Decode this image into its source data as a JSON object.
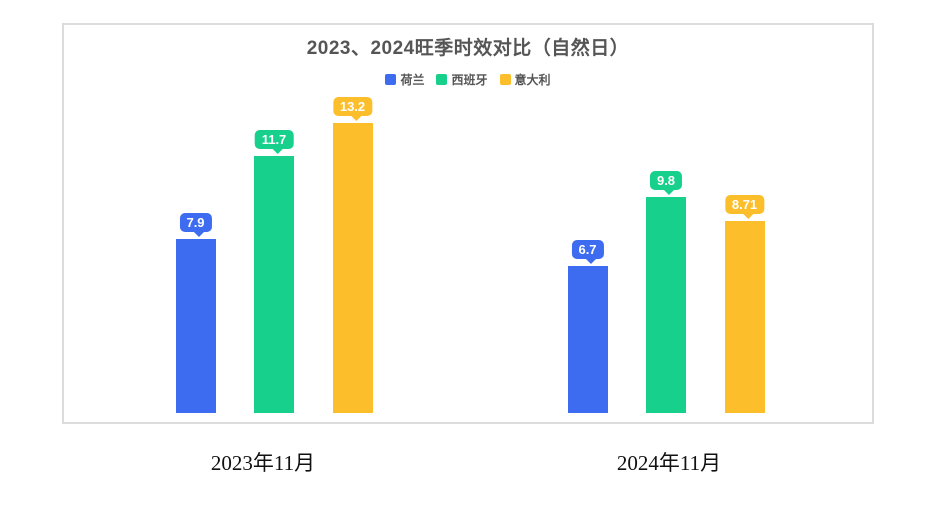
{
  "chart_data": {
    "type": "bar",
    "title": "2023、2024旺季时效对比（自然日）",
    "categories": [
      "2023年11月",
      "2024年11月"
    ],
    "category_keys": [
      "2023-11",
      "2024-11"
    ],
    "series": [
      {
        "key": "netherlands",
        "name": "荷兰",
        "color": "#3D6CF0",
        "values": [
          7.9,
          6.7
        ],
        "labels": [
          "7.9",
          "6.7"
        ]
      },
      {
        "key": "spain",
        "name": "西班牙",
        "color": "#17D08C",
        "values": [
          11.7,
          9.8
        ],
        "labels": [
          "11.7",
          "9.8"
        ]
      },
      {
        "key": "italy",
        "name": "意大利",
        "color": "#FCBE2B",
        "values": [
          13.2,
          8.71
        ],
        "labels": [
          "13.2",
          "8.71"
        ]
      }
    ],
    "legend_position": "top",
    "grid": false,
    "axes_visible": false,
    "ylim": [
      0,
      14
    ],
    "value_label_style": "colored speech bubble above each bar",
    "xlabel": "",
    "ylabel": ""
  },
  "style": {
    "card_border_color": "#dcdcdc",
    "title_color": "#555555",
    "legend_text_color": "#555555",
    "axis_label_color": "#111111",
    "background": "#ffffff"
  }
}
